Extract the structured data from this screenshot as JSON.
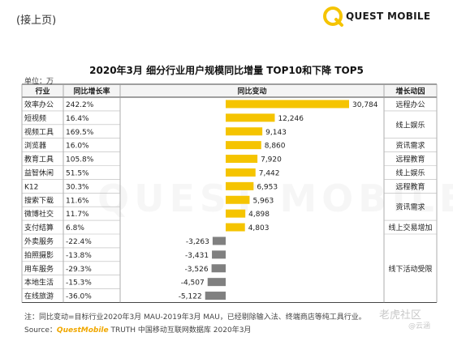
{
  "header": {
    "continued": "(接上页)",
    "logo_text": "QUEST MOBILE",
    "brand_color": "#f5c400"
  },
  "title": "2020年3月 细分行业用户规模同比增量 TOP10和下降 TOP5",
  "unit": "单位：万",
  "columns": {
    "industry": "行业",
    "growth": "同比增长率",
    "change": "同比变动",
    "driver": "增长动因"
  },
  "chart_data": {
    "type": "bar",
    "orientation": "horizontal",
    "title": "2020年3月 细分行业用户规模同比增量 TOP10和下降 TOP5",
    "unit": "万",
    "categories": [
      "效率办公",
      "短视频",
      "视频工具",
      "浏览器",
      "教育工具",
      "益智休闲",
      "K12",
      "搜索下载",
      "微博社交",
      "支付结算",
      "外卖服务",
      "拍照摄影",
      "用车服务",
      "本地生活",
      "在线旅游"
    ],
    "growth_rates": [
      "242.2%",
      "16.4%",
      "169.5%",
      "16.0%",
      "105.8%",
      "51.5%",
      "30.3%",
      "11.6%",
      "11.7%",
      "6.8%",
      "-22.4%",
      "-13.8%",
      "-29.3%",
      "-15.3%",
      "-36.0%"
    ],
    "values": [
      30784,
      12246,
      9143,
      8860,
      7920,
      7442,
      6953,
      5963,
      4898,
      4803,
      -3263,
      -3431,
      -3526,
      -4507,
      -5122
    ],
    "value_labels": [
      "30,784",
      "12,246",
      "9,143",
      "8,860",
      "7,920",
      "7,442",
      "6,953",
      "5,963",
      "4,898",
      "4,803",
      "-3,263",
      "-3,431",
      "-3,526",
      "-4,507",
      "-5,122"
    ],
    "positive_color": "#f5c400",
    "negative_color": "#808080"
  },
  "drivers": [
    {
      "text": "远程办公",
      "from": 0,
      "to": 0
    },
    {
      "text": "线上娱乐",
      "from": 1,
      "to": 2
    },
    {
      "text": "资讯需求",
      "from": 3,
      "to": 3
    },
    {
      "text": "远程教育",
      "from": 4,
      "to": 4
    },
    {
      "text": "线上娱乐",
      "from": 5,
      "to": 5
    },
    {
      "text": "远程教育",
      "from": 6,
      "to": 6
    },
    {
      "text": "资讯需求",
      "from": 7,
      "to": 8
    },
    {
      "text": "线上交易增加",
      "from": 9,
      "to": 9
    },
    {
      "text": "线下活动受限",
      "from": 10,
      "to": 14
    }
  ],
  "footer": {
    "note": "注：同比变动=目标行业2020年3月 MAU-2019年3月 MAU，已经剔除输入法、终端商店等纯工具行业。",
    "source_label": "Source：",
    "source_brand": "QuestMobile",
    "source_text": " TRUTH 中国移动互联网数据库 2020年3月"
  },
  "watermarks": {
    "center": "QUEST MOBILE",
    "corner": "老虎社区",
    "corner_sub": "@云涵"
  }
}
